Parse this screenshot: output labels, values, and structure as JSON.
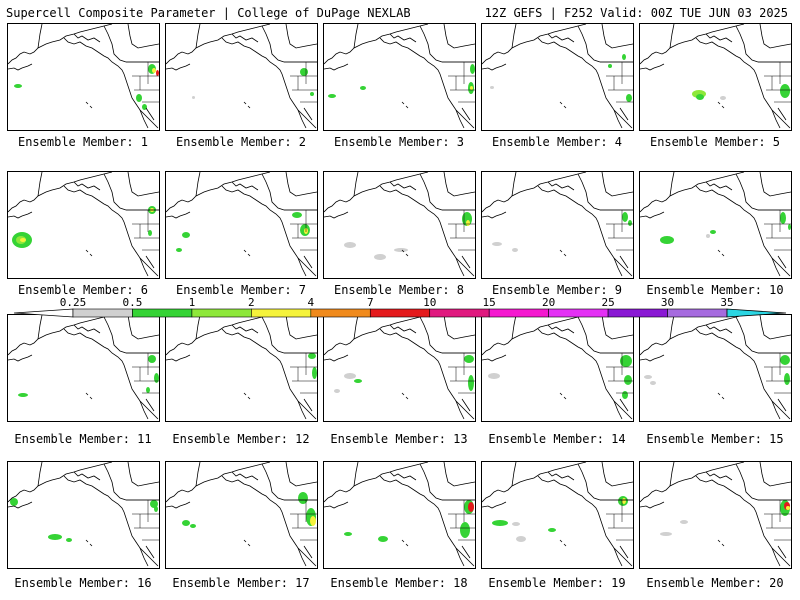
{
  "header": {
    "left": "Supercell Composite Parameter | College of DuPage NEXLAB",
    "right": "12Z GEFS | F252 Valid: 00Z TUE JUN 03 2025"
  },
  "members": [
    {
      "label": "Ensemble Member: 1"
    },
    {
      "label": "Ensemble Member: 2"
    },
    {
      "label": "Ensemble Member: 3"
    },
    {
      "label": "Ensemble Member: 4"
    },
    {
      "label": "Ensemble Member: 5"
    },
    {
      "label": "Ensemble Member: 6"
    },
    {
      "label": "Ensemble Member: 7"
    },
    {
      "label": "Ensemble Member: 8"
    },
    {
      "label": "Ensemble Member: 9"
    },
    {
      "label": "Ensemble Member: 10"
    },
    {
      "label": "Ensemble Member: 11"
    },
    {
      "label": "Ensemble Member: 12"
    },
    {
      "label": "Ensemble Member: 13"
    },
    {
      "label": "Ensemble Member: 14"
    },
    {
      "label": "Ensemble Member: 15"
    },
    {
      "label": "Ensemble Member: 16"
    },
    {
      "label": "Ensemble Member: 17"
    },
    {
      "label": "Ensemble Member: 18"
    },
    {
      "label": "Ensemble Member: 19"
    },
    {
      "label": "Ensemble Member: 20"
    }
  ],
  "colorbar": {
    "thresholds": [
      "0.25",
      "0.5",
      "1",
      "2",
      "4",
      "7",
      "10",
      "15",
      "20",
      "25",
      "30",
      "35"
    ],
    "colors": [
      "#d0d0d0",
      "#35d335",
      "#8ee83a",
      "#f5f33b",
      "#f08a1c",
      "#e41a1c",
      "#e0197f",
      "#f518d0",
      "#e431f5",
      "#8a18d4",
      "#a66bdf",
      "#2bd6e3"
    ]
  }
}
